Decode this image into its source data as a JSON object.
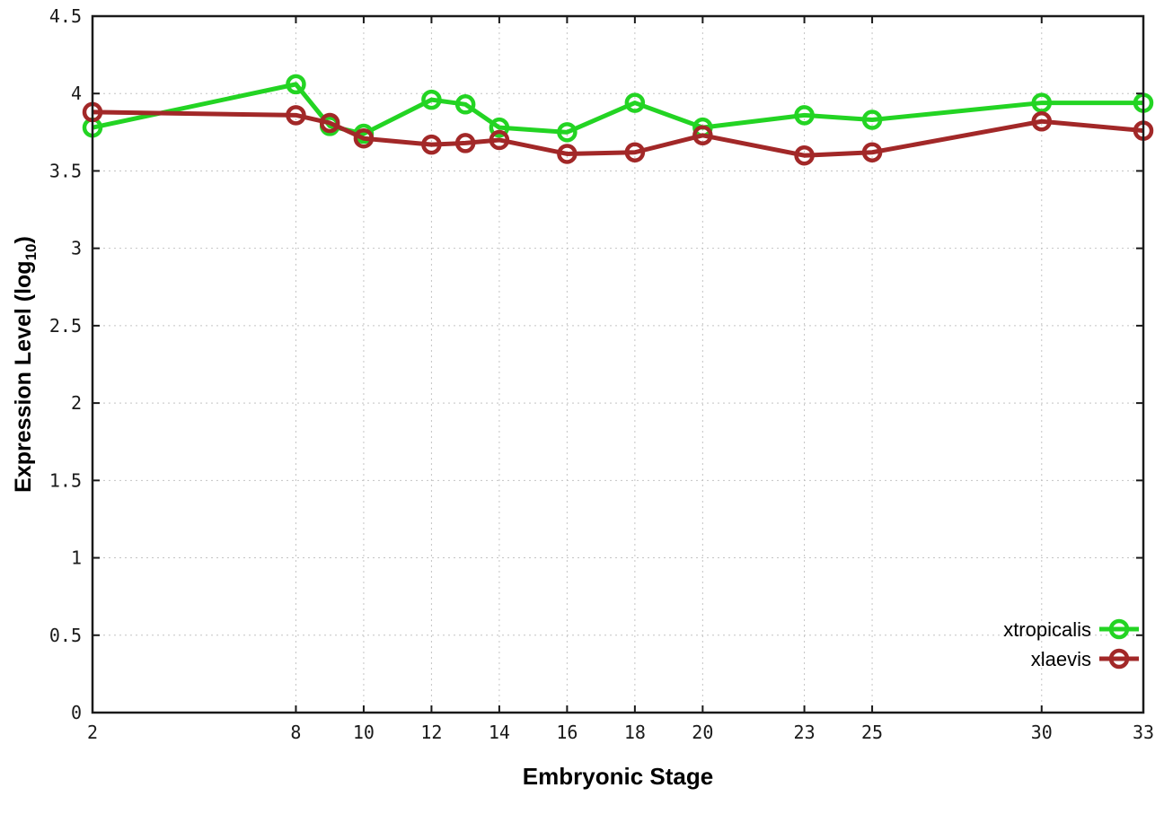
{
  "chart_data": {
    "type": "line",
    "xlabel": "Embryonic Stage",
    "ylabel_base": "Expression Level (log",
    "ylabel_sub": "10",
    "ylabel_close": ")",
    "x": [
      2,
      8,
      9,
      10,
      12,
      13,
      14,
      16,
      18,
      20,
      23,
      25,
      30,
      33
    ],
    "series": [
      {
        "name": "xtropicalis",
        "color": "#23d423",
        "values": [
          3.78,
          4.06,
          3.79,
          3.74,
          3.96,
          3.93,
          3.78,
          3.75,
          3.94,
          3.78,
          3.86,
          3.83,
          3.94,
          3.94
        ]
      },
      {
        "name": "xlaevis",
        "color": "#a22828",
        "values": [
          3.88,
          3.86,
          3.81,
          3.71,
          3.67,
          3.68,
          3.7,
          3.61,
          3.62,
          3.73,
          3.6,
          3.62,
          3.82,
          3.76
        ]
      }
    ],
    "xlim": [
      2,
      33
    ],
    "ylim": [
      0,
      4.5
    ],
    "xticks": [
      2,
      8,
      10,
      12,
      14,
      16,
      18,
      20,
      23,
      25,
      30,
      33
    ],
    "xtick_labels": [
      "2",
      "8",
      "10",
      "12",
      "14",
      "16",
      "18",
      "20",
      "23",
      "25",
      "30",
      "33"
    ],
    "yticks": [
      0,
      0.5,
      1,
      1.5,
      2,
      2.5,
      3,
      3.5,
      4,
      4.5
    ],
    "ytick_labels": [
      "0",
      "0.5",
      "1",
      "1.5",
      "2",
      "2.5",
      "3",
      "3.5",
      "4",
      "4.5"
    ],
    "grid": true,
    "legend_position": "bottom-right",
    "marker": "open-circle",
    "colors": {
      "grid": "#c4c4c4",
      "axis": "#1a1a1a",
      "tick_text": "#1a1a1a",
      "title_text": "#000000",
      "background": "#ffffff"
    }
  }
}
